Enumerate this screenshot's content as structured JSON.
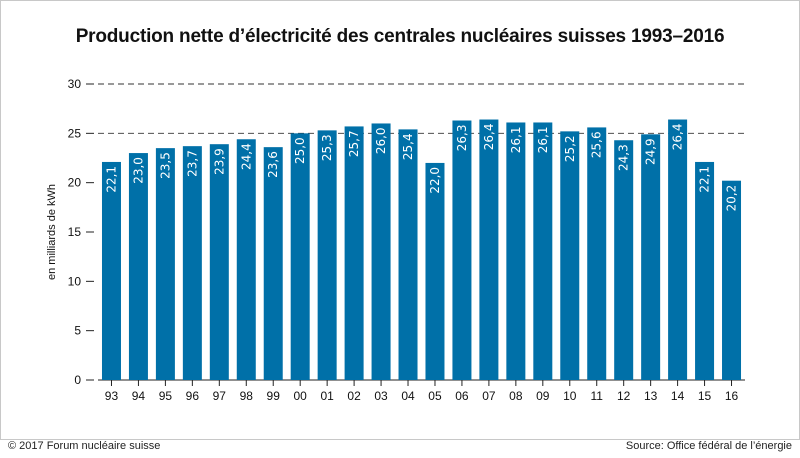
{
  "chart_data": {
    "type": "bar",
    "title": "Production nette d’électricité des centrales nucléaires suisses 1993–2016",
    "ylabel": "en milliards de kWh",
    "xlabel": "",
    "ylim": [
      0,
      30
    ],
    "yticks": [
      0,
      5,
      10,
      15,
      20,
      25,
      30
    ],
    "grid": "dashed horizontal at 25 and 30",
    "bar_color": "#0070a8",
    "categories": [
      "93",
      "94",
      "95",
      "96",
      "97",
      "98",
      "99",
      "00",
      "01",
      "02",
      "03",
      "04",
      "05",
      "06",
      "07",
      "08",
      "09",
      "10",
      "11",
      "12",
      "13",
      "14",
      "15",
      "16"
    ],
    "values": [
      22.1,
      23.0,
      23.5,
      23.7,
      23.9,
      24.4,
      23.6,
      25.0,
      25.3,
      25.7,
      26.0,
      25.4,
      22.0,
      26.3,
      26.4,
      26.1,
      26.1,
      25.2,
      25.6,
      24.3,
      24.9,
      26.4,
      22.1,
      20.2
    ],
    "value_labels": [
      "22,1",
      "23,0",
      "23,5",
      "23,7",
      "23,9",
      "24,4",
      "23,6",
      "25,0",
      "25,3",
      "25,7",
      "26,0",
      "25,4",
      "22,0",
      "26,3",
      "26,4",
      "26,1",
      "26,1",
      "25,2",
      "25,6",
      "24,3",
      "24,9",
      "26,4",
      "22,1",
      "20,2"
    ]
  },
  "footer": {
    "copyright": "© 2017 Forum nucléaire suisse",
    "source": "Source: Office fédéral de l’énergie"
  }
}
